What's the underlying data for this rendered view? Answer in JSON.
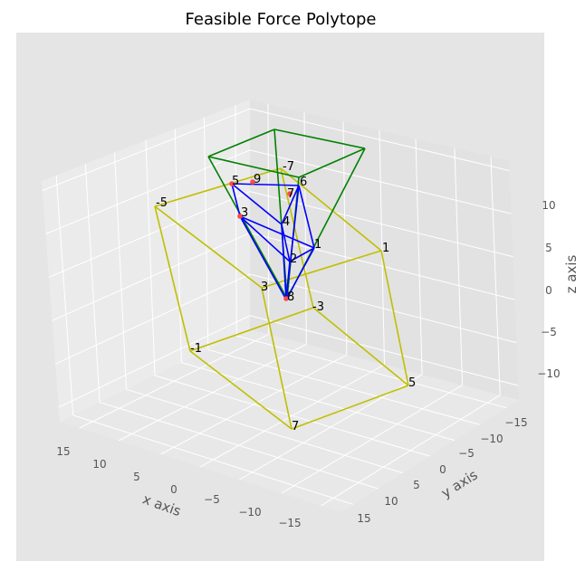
{
  "chart_data": {
    "type": "3d-line",
    "title": "Feasible Force Polytope",
    "xlabel": "x axis",
    "ylabel": "y axis",
    "zlabel": "z axis",
    "x_ticks": [
      "15",
      "10",
      "5",
      "0",
      "−5",
      "−10",
      "−15"
    ],
    "y_ticks": [
      "−15",
      "−10",
      "−5",
      "0",
      "5",
      "10",
      "15"
    ],
    "z_ticks": [
      "10",
      "5",
      "0",
      "−5",
      "−10"
    ],
    "grid": true,
    "colors": {
      "background": "#e5e5e5",
      "pane_left": "#ebebeb",
      "pane_right": "#e2e2e2",
      "pane_floor": "#e8e8e8",
      "grid": "#ffffff",
      "yellow_polytope": "#bfbf00",
      "green_polytope": "#008000",
      "blue_polytope": "#0000ff",
      "markers": "#ff4a4a"
    },
    "series": [
      {
        "color": "yellow",
        "vertex_labels": [
          "-5",
          "-7",
          "1",
          "3",
          "-3",
          "-1",
          "5",
          "7"
        ]
      },
      {
        "color": "green",
        "vertex_labels": []
      },
      {
        "color": "blue",
        "vertex_labels": [
          "5",
          "9",
          "6",
          "7",
          "3",
          "4",
          "1",
          "2",
          "8"
        ]
      }
    ]
  }
}
